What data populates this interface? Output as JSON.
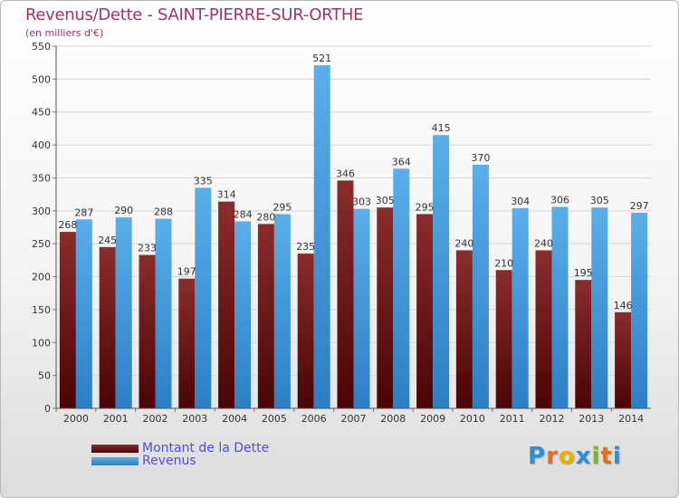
{
  "title": "Revenus/Dette - SAINT-PIERRE-SUR-ORTHE",
  "subtitle": "(en milliers d'€)",
  "logo": {
    "text": "Proxiti",
    "letters": [
      "P",
      "r",
      "o",
      "x",
      "i",
      "t",
      "i"
    ],
    "colors": [
      "#2f8fd6",
      "#e0701c",
      "#e8b000",
      "#2f8fd6",
      "#79b925",
      "#e0701c",
      "#2f8fd6"
    ]
  },
  "chart_data": {
    "type": "bar",
    "categories": [
      "2000",
      "2001",
      "2002",
      "2003",
      "2004",
      "2005",
      "2006",
      "2007",
      "2008",
      "2009",
      "2010",
      "2011",
      "2012",
      "2013",
      "2014"
    ],
    "series": [
      {
        "name": "Montant de la Dette",
        "color": "#6d1010",
        "values": [
          268,
          245,
          233,
          197,
          314,
          280,
          235,
          346,
          305,
          295,
          240,
          210,
          240,
          195,
          146
        ]
      },
      {
        "name": "Revenus",
        "color": "#3c93da",
        "values": [
          287,
          290,
          288,
          335,
          284,
          295,
          521,
          303,
          364,
          415,
          370,
          304,
          306,
          305,
          297
        ]
      }
    ],
    "ylim": [
      0,
      550
    ],
    "yticks": [
      "0",
      "50",
      "100",
      "150",
      "200",
      "250",
      "300",
      "350",
      "400",
      "450",
      "500",
      "550"
    ],
    "grid": true,
    "legend": "bottom-left"
  }
}
